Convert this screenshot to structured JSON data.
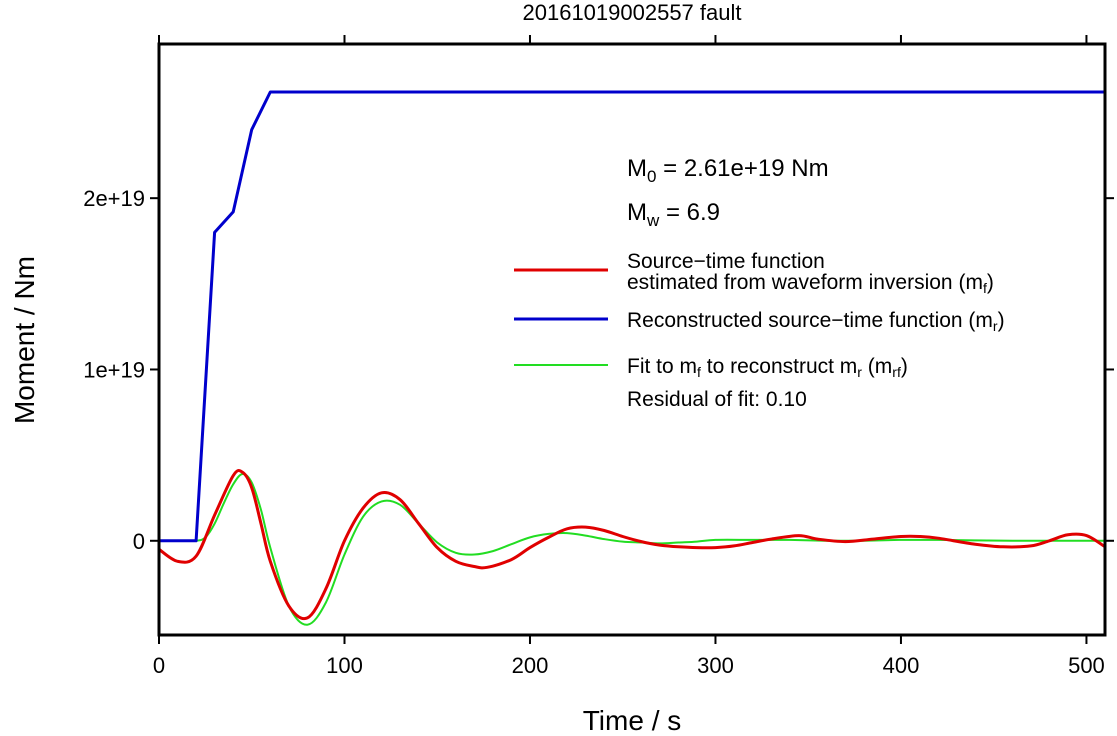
{
  "chart_data": {
    "type": "line",
    "title": "20161019002557 fault",
    "xlabel": "Time / s",
    "ylabel": "Moment / Nm",
    "xlim": [
      0,
      510
    ],
    "ylim": [
      -5.5e+18,
      2.9e+19
    ],
    "x_ticks": [
      0,
      100,
      200,
      300,
      400,
      500
    ],
    "x_tick_labels": [
      "0",
      "100",
      "200",
      "300",
      "400",
      "500"
    ],
    "y_ticks": [
      0,
      1e+19,
      2e+19
    ],
    "y_tick_labels": [
      "0",
      "1e+19",
      "2e+19"
    ],
    "grid": false,
    "legend_position": "right",
    "annotations": {
      "m0": {
        "symbol": "M",
        "sub": "0",
        "text": " = 2.61e+19 Nm"
      },
      "mw": {
        "symbol": "M",
        "sub": "w",
        "text": " = 6.9"
      },
      "residual": "Residual of fit: 0.10"
    },
    "series": [
      {
        "name": "Source−time function estimated from waveform inversion (mf)",
        "legend_line1": "Source−time function",
        "legend_line2a": "estimated from waveform inversion (m",
        "legend_line2sub": "f",
        "legend_line2b": ")",
        "color": "#e00000",
        "width": 3,
        "x": [
          0,
          10,
          20,
          30,
          40,
          45,
          50,
          55,
          60,
          70,
          80,
          90,
          100,
          110,
          120,
          130,
          140,
          150,
          160,
          170,
          177,
          190,
          200,
          210,
          220,
          230,
          240,
          250,
          260,
          270,
          280,
          290,
          300,
          310,
          320,
          330,
          345,
          355,
          370,
          385,
          400,
          410,
          420,
          440,
          455,
          470,
          480,
          490,
          500,
          510
        ],
        "y": [
          -5e+17,
          -1.2e+18,
          -9e+17,
          1.5e+18,
          3.8e+18,
          4e+18,
          3.1e+18,
          1e+18,
          -1.2e+18,
          -3.8e+18,
          -4.5e+18,
          -2.8e+18,
          0.0,
          1.9e+18,
          2.8e+18,
          2.4e+18,
          1e+18,
          -4e+17,
          -1.2e+18,
          -1.5e+18,
          -1.55e+18,
          -1.1e+18,
          -4e+17,
          2e+17,
          7e+17,
          8e+17,
          6e+17,
          2.5e+17,
          -5e+16,
          -2.5e+17,
          -3.5e+17,
          -4e+17,
          -4e+17,
          -3e+17,
          -1e+17,
          1e+17,
          3e+17,
          1e+17,
          -5e+16,
          1e+17,
          2.5e+17,
          2.5e+17,
          1.5e+17,
          -2e+17,
          -3.5e+17,
          -3e+17,
          0.0,
          3.5e+17,
          3e+17,
          -3.5e+17
        ]
      },
      {
        "name": "Reconstructed source−time function (mr)",
        "legend_a": "Reconstructed source−time function (m",
        "legend_sub": "r",
        "legend_b": ")",
        "color": "#0000cc",
        "width": 3,
        "x": [
          0,
          20,
          30,
          40,
          50,
          60,
          510
        ],
        "y": [
          0,
          0,
          1.8e+19,
          1.92e+19,
          2.4e+19,
          2.62e+19,
          2.62e+19
        ]
      },
      {
        "name": "Fit to mf to reconstruct mr (mrf)",
        "legend_a": "Fit to m",
        "legend_sub1": "f",
        "legend_b": " to reconstruct m",
        "legend_sub2": "r",
        "legend_c": " (m",
        "legend_sub3": "rf",
        "legend_d": ")",
        "color": "#22dd22",
        "width": 2,
        "x": [
          0,
          10,
          20,
          25,
          30,
          35,
          40,
          45,
          50,
          55,
          60,
          70,
          80,
          90,
          100,
          110,
          120,
          130,
          140,
          150,
          160,
          170,
          180,
          190,
          200,
          210,
          220,
          230,
          240,
          250,
          260,
          270,
          280,
          290,
          300,
          320,
          340,
          360,
          380,
          400,
          420,
          440,
          460,
          480,
          500,
          510
        ],
        "y": [
          0,
          0,
          0,
          2e+17,
          1e+18,
          2.2e+18,
          3.3e+18,
          3.9e+18,
          3.4e+18,
          1.8e+18,
          -4e+17,
          -3.8e+18,
          -4.9e+18,
          -3.6e+18,
          -8e+17,
          1.4e+18,
          2.3e+18,
          2.1e+18,
          1e+18,
          -1e+17,
          -7e+17,
          -8e+17,
          -6e+17,
          -2e+17,
          2e+17,
          4e+17,
          4.5e+17,
          3e+17,
          1e+17,
          -5e+16,
          -1e+17,
          -1.5e+17,
          -1e+17,
          -5e+16,
          5e+16,
          5e+16,
          5e+16,
          0.0,
          0.0,
          5e+16,
          5e+16,
          2e+16,
          0.0,
          0.0,
          0.0,
          0.0
        ]
      }
    ]
  }
}
